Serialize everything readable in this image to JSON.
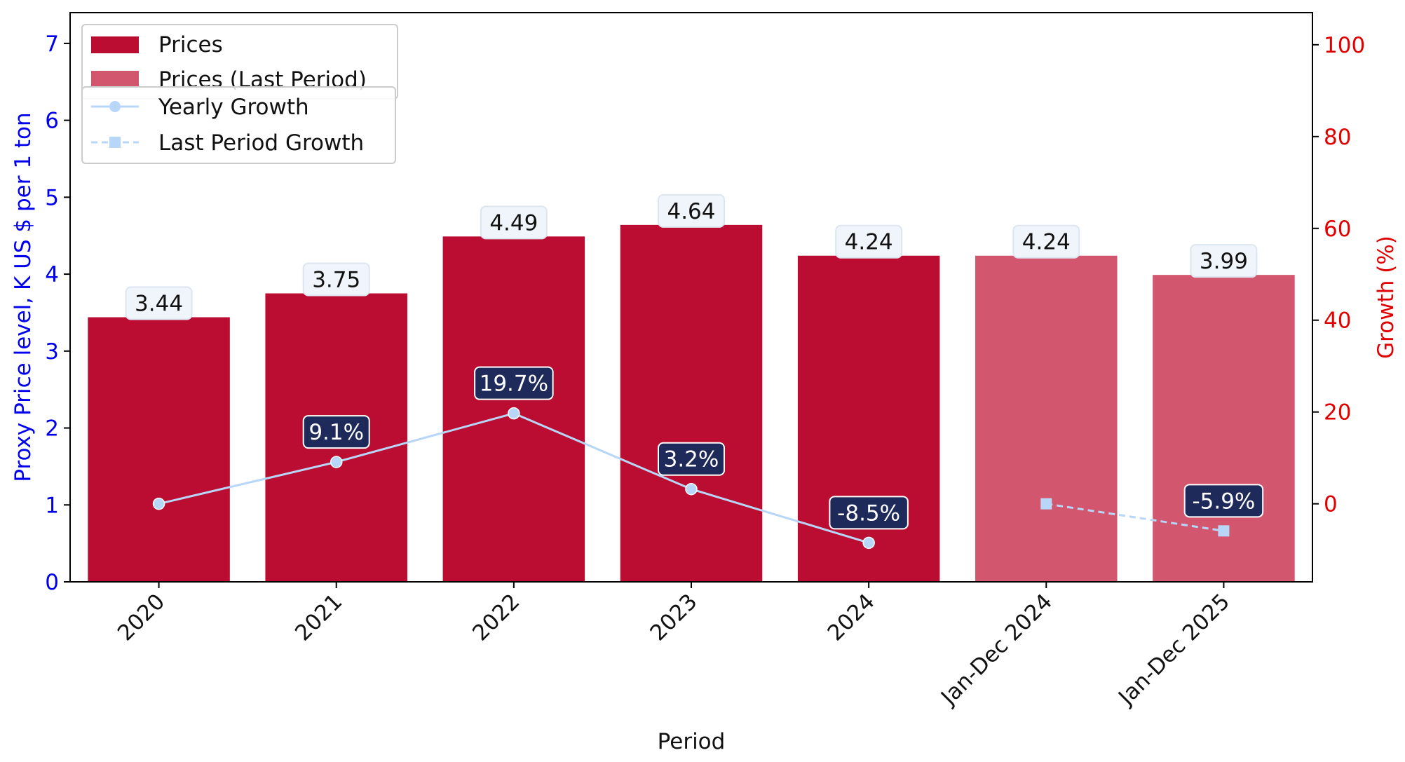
{
  "chart_data": {
    "type": "bar",
    "categories": [
      "2020",
      "2021",
      "2022",
      "2023",
      "2024",
      "Jan-Dec 2024",
      "Jan-Dec 2025"
    ],
    "series": [
      {
        "name": "Prices",
        "values": [
          3.44,
          3.75,
          4.49,
          4.64,
          4.24,
          null,
          null
        ],
        "labels": [
          "3.44",
          "3.75",
          "4.49",
          "4.64",
          "4.24",
          "",
          ""
        ],
        "color": "#bb0d31"
      },
      {
        "name": "Prices (Last Period)",
        "values": [
          null,
          null,
          null,
          null,
          null,
          4.24,
          3.99
        ],
        "labels": [
          "",
          "",
          "",
          "",
          "",
          "4.24",
          "3.99"
        ],
        "color": "#d1566e"
      },
      {
        "name": "Yearly Growth",
        "type": "line",
        "axis": "right",
        "marker": "circle",
        "values": [
          0,
          9.1,
          19.7,
          3.2,
          -8.5,
          null,
          null
        ],
        "labels": [
          "",
          "9.1%",
          "19.7%",
          "3.2%",
          "-8.5%",
          "",
          ""
        ],
        "color": "#b7d6f8"
      },
      {
        "name": "Last Period Growth",
        "type": "line",
        "axis": "right",
        "marker": "square",
        "dashed": true,
        "values": [
          null,
          null,
          null,
          null,
          null,
          0,
          -5.9
        ],
        "labels": [
          "",
          "",
          "",
          "",
          "",
          "",
          "-5.9%"
        ],
        "color": "#b7d6f8"
      }
    ],
    "xlabel": "Period",
    "ylabel": "Proxy Price level, K US $ per 1 ton",
    "y2label": "Growth (%)",
    "ylim": [
      0,
      7.4
    ],
    "y2lim": [
      -17,
      107
    ],
    "yticks": [
      "0",
      "1",
      "2",
      "3",
      "4",
      "5",
      "6",
      "7"
    ],
    "y2ticks": [
      "0",
      "20",
      "40",
      "60",
      "80",
      "100"
    ],
    "grid": false,
    "legend_placement": "top-left",
    "colors": {
      "left_axis": "#0000ee",
      "right_axis": "#e00000",
      "bar_label_box": "#eff5fb",
      "growth_label_box": "#1e2a5a"
    }
  }
}
